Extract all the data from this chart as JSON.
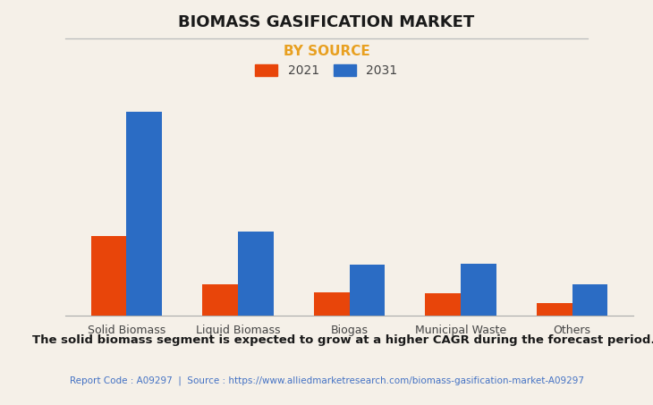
{
  "title": "BIOMASS GASIFICATION MARKET",
  "subtitle": "BY SOURCE",
  "categories": [
    "Solid Biomass",
    "Liquid Biomass",
    "Biogas",
    "Municipal Waste",
    "Others"
  ],
  "values_2021": [
    5.5,
    2.2,
    1.6,
    1.55,
    0.9
  ],
  "values_2031": [
    14.0,
    5.8,
    3.5,
    3.6,
    2.2
  ],
  "color_2021": "#E8450A",
  "color_2031": "#2B6CC4",
  "subtitle_color": "#E8A020",
  "background_color": "#F5F0E8",
  "legend_labels": [
    "2021",
    "2031"
  ],
  "footer_bold": "The solid biomass segment is expected to grow at a higher CAGR during the forecast period.",
  "footer_source": "Report Code : A09297  |  Source : https://www.alliedmarketresearch.com/biomass-gasification-market-A09297",
  "footer_source_color": "#4472C4",
  "grid_color": "#CCCCCC",
  "title_fontsize": 13,
  "subtitle_fontsize": 11,
  "bar_width": 0.32,
  "ylim": [
    0,
    16
  ]
}
